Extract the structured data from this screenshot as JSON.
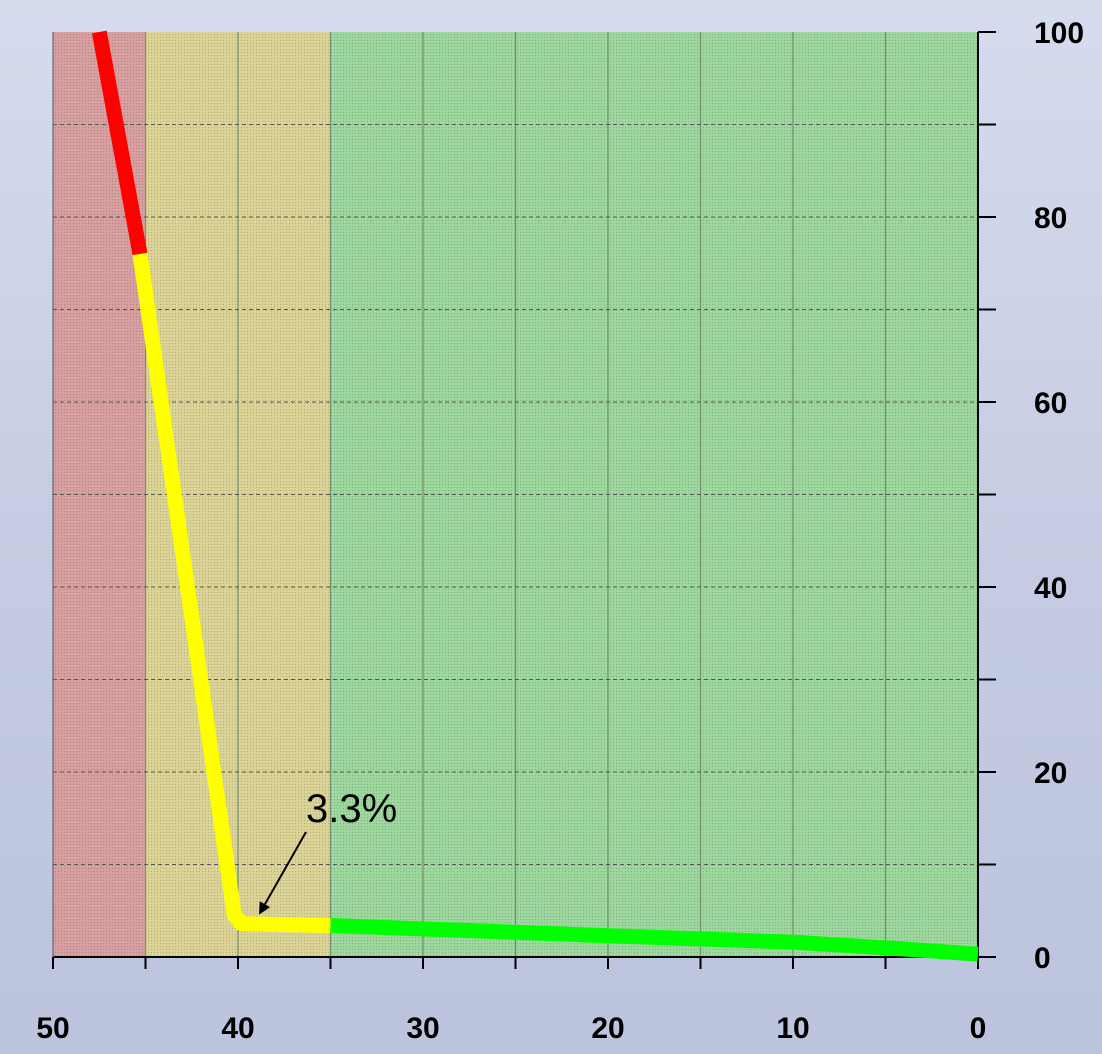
{
  "chart_data": {
    "type": "line",
    "title": "",
    "xlabel": "",
    "ylabel": "",
    "x_axis": {
      "min": 0,
      "max": 50,
      "reversed": true,
      "ticks": [
        50,
        40,
        30,
        20,
        10,
        0
      ],
      "tick_labels": [
        "50",
        "40",
        "30",
        "20",
        "10",
        "0"
      ],
      "minor_gridlines_every": 5
    },
    "y_axis": {
      "min": 0,
      "max": 100,
      "position": "right",
      "ticks": [
        0,
        20,
        40,
        60,
        80,
        100
      ],
      "tick_labels": [
        "0",
        "20",
        "40",
        "60",
        "80",
        "100"
      ],
      "minor_gridlines_every": 10
    },
    "grid": true,
    "bands": [
      {
        "x_from": 50,
        "x_to": 45,
        "color": "#d8a0a0"
      },
      {
        "x_from": 45,
        "x_to": 35,
        "color": "#dcd496"
      },
      {
        "x_from": 35,
        "x_to": 0,
        "color": "#9ed89e"
      }
    ],
    "series": [
      {
        "color": "#ff0000",
        "points": [
          [
            47.5,
            100
          ],
          [
            45.3,
            76
          ]
        ]
      },
      {
        "color": "#ffff00",
        "points": [
          [
            45.3,
            76
          ],
          [
            40.2,
            4.5
          ],
          [
            39.8,
            3.6
          ],
          [
            35,
            3.4
          ]
        ]
      },
      {
        "color": "#00ff00",
        "points": [
          [
            35,
            3.4
          ],
          [
            20,
            2.3
          ],
          [
            10,
            1.6
          ],
          [
            5,
            1.0
          ],
          [
            0,
            0.3
          ]
        ]
      }
    ],
    "annotations": [
      {
        "text": "3.3%",
        "arrow_to": [
          39.0,
          4.0
        ]
      }
    ]
  }
}
